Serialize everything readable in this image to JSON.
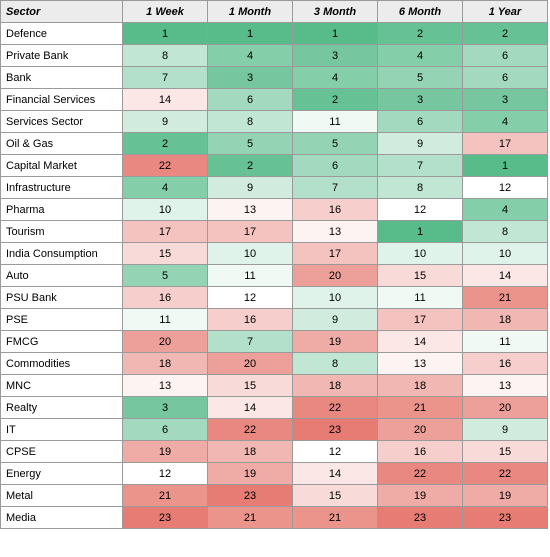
{
  "chart_data": {
    "type": "heatmap",
    "row_header": "Sector",
    "columns": [
      "1 Week",
      "1 Month",
      "3 Month",
      "6 Month",
      "1 Year"
    ],
    "value_range": [
      1,
      23
    ],
    "color_scale": {
      "low": "#57bb8a",
      "mid": "#ffffff",
      "high": "#e67c73"
    },
    "rows": [
      {
        "sector": "Defence",
        "values": [
          1,
          1,
          1,
          2,
          2
        ]
      },
      {
        "sector": "Private Bank",
        "values": [
          8,
          4,
          3,
          4,
          6
        ]
      },
      {
        "sector": "Bank",
        "values": [
          7,
          3,
          4,
          5,
          6
        ]
      },
      {
        "sector": "Financial Services",
        "values": [
          14,
          6,
          2,
          3,
          3
        ]
      },
      {
        "sector": "Services Sector",
        "values": [
          9,
          8,
          11,
          6,
          4
        ]
      },
      {
        "sector": "Oil & Gas",
        "values": [
          2,
          5,
          5,
          9,
          17
        ]
      },
      {
        "sector": "Capital Market",
        "values": [
          22,
          2,
          6,
          7,
          1
        ]
      },
      {
        "sector": "Infrastructure",
        "values": [
          4,
          9,
          7,
          8,
          12
        ]
      },
      {
        "sector": "Pharma",
        "values": [
          10,
          13,
          16,
          12,
          4
        ]
      },
      {
        "sector": "Tourism",
        "values": [
          17,
          17,
          13,
          1,
          8
        ]
      },
      {
        "sector": "India Consumption",
        "values": [
          15,
          10,
          17,
          10,
          10
        ]
      },
      {
        "sector": "Auto",
        "values": [
          5,
          11,
          20,
          15,
          14
        ]
      },
      {
        "sector": "PSU Bank",
        "values": [
          16,
          12,
          10,
          11,
          21
        ]
      },
      {
        "sector": "PSE",
        "values": [
          11,
          16,
          9,
          17,
          18
        ]
      },
      {
        "sector": "FMCG",
        "values": [
          20,
          7,
          19,
          14,
          11
        ]
      },
      {
        "sector": "Commodities",
        "values": [
          18,
          20,
          8,
          13,
          16
        ]
      },
      {
        "sector": "MNC",
        "values": [
          13,
          15,
          18,
          18,
          13
        ]
      },
      {
        "sector": "Realty",
        "values": [
          3,
          14,
          22,
          21,
          20
        ]
      },
      {
        "sector": "IT",
        "values": [
          6,
          22,
          23,
          20,
          9
        ]
      },
      {
        "sector": "CPSE",
        "values": [
          19,
          18,
          12,
          16,
          15
        ]
      },
      {
        "sector": "Energy",
        "values": [
          12,
          19,
          14,
          22,
          22
        ]
      },
      {
        "sector": "Metal",
        "values": [
          21,
          23,
          15,
          19,
          19
        ]
      },
      {
        "sector": "Media",
        "values": [
          23,
          21,
          21,
          23,
          23
        ]
      }
    ]
  }
}
